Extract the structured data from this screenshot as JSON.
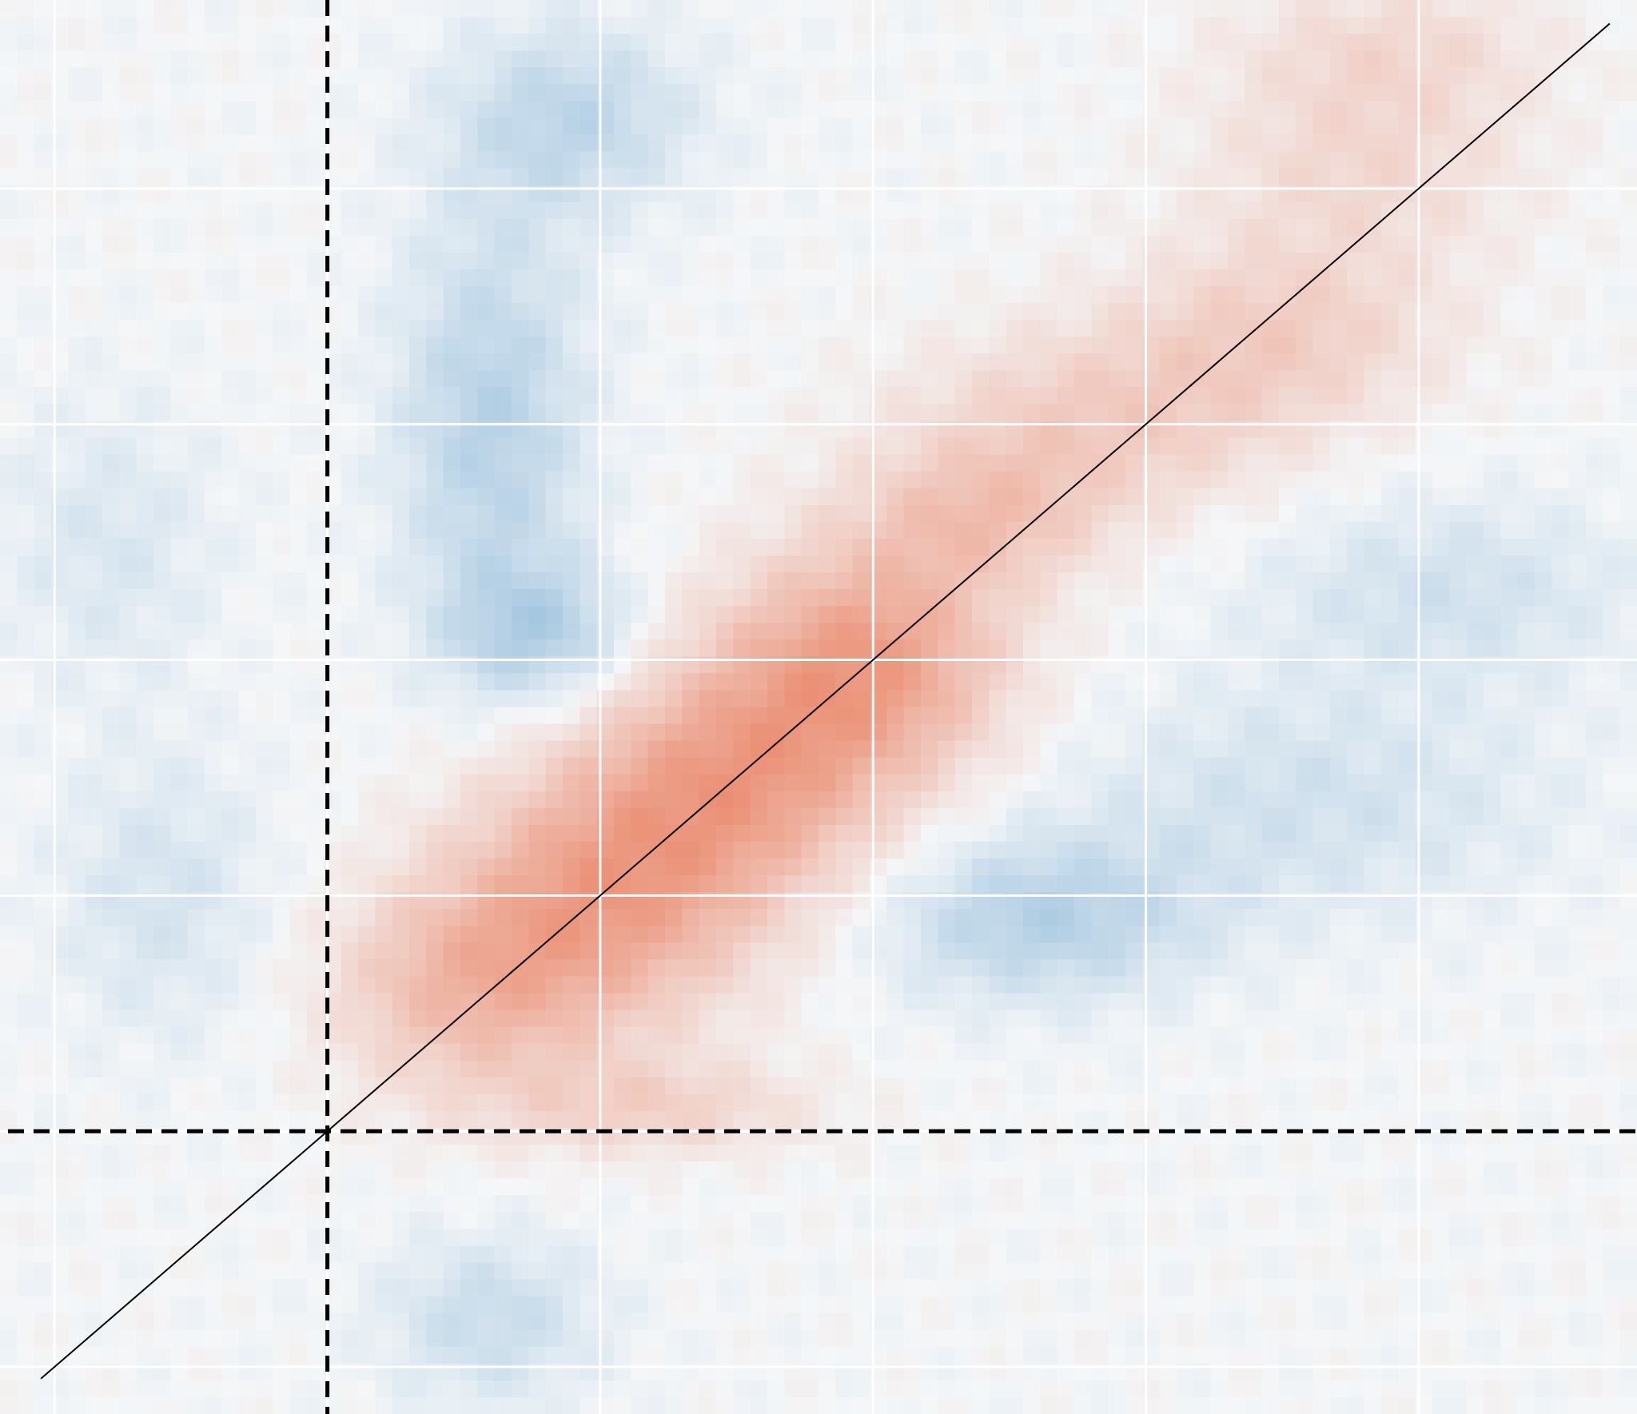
{
  "chart_data": {
    "type": "heatmap",
    "colormap": {
      "negative": "#4a90c4",
      "neutral": "#f4f6f8",
      "positive": "#e8724f"
    },
    "value_range": [
      -1,
      1
    ],
    "axes_visible": false,
    "grid": true,
    "grid_color": "#ffffff",
    "x_range": [
      -1.2,
      4.8
    ],
    "y_range": [
      -1.2,
      4.8
    ],
    "x_gridlines": [
      -1,
      0,
      1,
      2,
      3,
      4
    ],
    "y_gridlines": [
      -1,
      0,
      1,
      2,
      3,
      4
    ],
    "cross_lines": {
      "style": "dashed",
      "color": "#000000",
      "x": 0,
      "y": 0
    },
    "diagonal_line": {
      "style": "solid",
      "color": "#000000",
      "from": [
        -1.05,
        -1.05
      ],
      "to": [
        4.7,
        4.7
      ]
    },
    "blobs": [
      {
        "x": 1.0,
        "y": 1.0,
        "sx": 0.55,
        "sy": 0.55,
        "value": 0.55
      },
      {
        "x": 1.5,
        "y": 1.5,
        "sx": 0.55,
        "sy": 0.55,
        "value": 0.55
      },
      {
        "x": 2.0,
        "y": 2.0,
        "sx": 0.5,
        "sy": 0.5,
        "value": 0.6
      },
      {
        "x": 0.5,
        "y": 0.6,
        "sx": 0.5,
        "sy": 0.45,
        "value": 0.4
      },
      {
        "x": 2.8,
        "y": 3.0,
        "sx": 0.7,
        "sy": 0.4,
        "value": 0.3
      },
      {
        "x": 3.5,
        "y": 3.4,
        "sx": 0.6,
        "sy": 0.4,
        "value": 0.28
      },
      {
        "x": 3.8,
        "y": 4.1,
        "sx": 0.6,
        "sy": 0.4,
        "value": 0.22
      },
      {
        "x": 2.4,
        "y": 2.6,
        "sx": 0.45,
        "sy": 0.3,
        "value": 0.3
      },
      {
        "x": 1.2,
        "y": 0.1,
        "sx": 0.6,
        "sy": 0.2,
        "value": 0.25
      },
      {
        "x": 0.6,
        "y": 3.0,
        "sx": 0.35,
        "sy": 0.9,
        "value": -0.35
      },
      {
        "x": 0.9,
        "y": 4.3,
        "sx": 0.45,
        "sy": 0.4,
        "value": -0.3
      },
      {
        "x": 0.8,
        "y": 2.1,
        "sx": 0.35,
        "sy": 0.3,
        "value": -0.35
      },
      {
        "x": 2.6,
        "y": 0.9,
        "sx": 0.6,
        "sy": 0.35,
        "value": -0.35
      },
      {
        "x": 3.6,
        "y": 1.4,
        "sx": 0.9,
        "sy": 0.5,
        "value": -0.2
      },
      {
        "x": 4.1,
        "y": 2.3,
        "sx": 0.7,
        "sy": 0.4,
        "value": -0.2
      },
      {
        "x": -0.6,
        "y": 1.0,
        "sx": 0.4,
        "sy": 0.6,
        "value": -0.18
      },
      {
        "x": -0.8,
        "y": 2.5,
        "sx": 0.4,
        "sy": 0.6,
        "value": -0.15
      },
      {
        "x": 0.6,
        "y": -0.8,
        "sx": 0.4,
        "sy": 0.35,
        "value": -0.25
      },
      {
        "x": 3.9,
        "y": 4.6,
        "sx": 0.6,
        "sy": 0.3,
        "value": 0.2
      }
    ]
  }
}
